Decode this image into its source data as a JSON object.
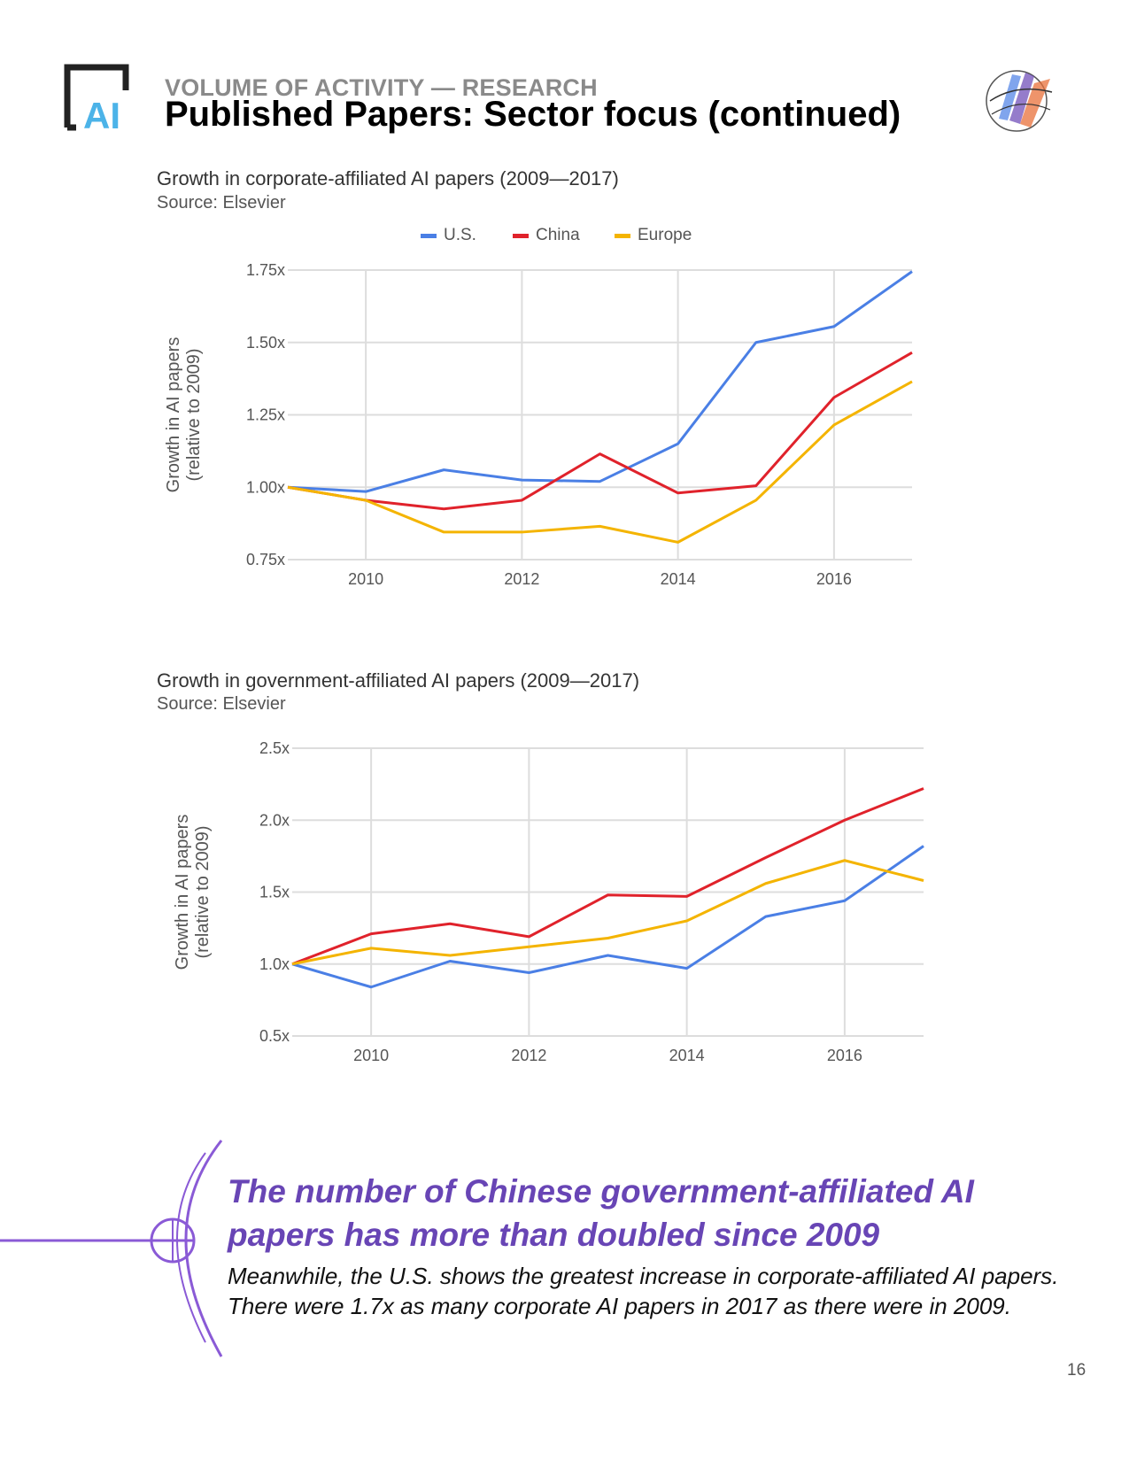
{
  "header": {
    "section": "VOLUME OF ACTIVITY — RESEARCH",
    "title": "Published Papers: Sector focus (continued)",
    "logo_text": "AI"
  },
  "colors": {
    "us": "#4a7fe5",
    "china": "#e0222b",
    "europe": "#f4b400",
    "accent": "#6845b5",
    "logo_dark": "#222222",
    "logo_light": "#4cb3e8"
  },
  "chart_data": [
    {
      "type": "line",
      "title": "Growth in corporate-affiliated AI papers (2009—2017)",
      "source": "Source: Elsevier",
      "ylabel": [
        "Growth in AI papers",
        "(relative to 2009)"
      ],
      "xlabel": "",
      "x": [
        2009,
        2010,
        2011,
        2012,
        2013,
        2014,
        2015,
        2016,
        2017
      ],
      "xticks": [
        2010,
        2012,
        2014,
        2016
      ],
      "xtick_labels": [
        "2010",
        "2012",
        "2014",
        "2016"
      ],
      "xlim": [
        2009,
        2017
      ],
      "yticks": [
        0.75,
        1.0,
        1.25,
        1.5,
        1.75
      ],
      "ytick_labels": [
        "0.75x",
        "1.00x",
        "1.25x",
        "1.50x",
        "1.75x"
      ],
      "ylim": [
        0.75,
        1.75
      ],
      "legend": "top-center",
      "series": [
        {
          "name": "U.S.",
          "color": "#4a7fe5",
          "values": [
            1.0,
            0.985,
            1.06,
            1.025,
            1.02,
            1.15,
            1.5,
            1.555,
            1.745
          ]
        },
        {
          "name": "China",
          "color": "#e0222b",
          "values": [
            1.0,
            0.955,
            0.925,
            0.955,
            1.115,
            0.98,
            1.005,
            1.31,
            1.465
          ]
        },
        {
          "name": "Europe",
          "color": "#f4b400",
          "values": [
            1.0,
            0.955,
            0.845,
            0.845,
            0.865,
            0.81,
            0.955,
            1.215,
            1.365
          ]
        }
      ]
    },
    {
      "type": "line",
      "title": "Growth in government-affiliated AI papers (2009—2017)",
      "source": "Source: Elsevier",
      "ylabel": [
        "Growth in AI papers",
        "(relative to 2009)"
      ],
      "xlabel": "",
      "x": [
        2009,
        2010,
        2011,
        2012,
        2013,
        2014,
        2015,
        2016,
        2017
      ],
      "xticks": [
        2010,
        2012,
        2014,
        2016
      ],
      "xtick_labels": [
        "2010",
        "2012",
        "2014",
        "2016"
      ],
      "xlim": [
        2009,
        2017
      ],
      "yticks": [
        0.5,
        1.0,
        1.5,
        2.0,
        2.5
      ],
      "ytick_labels": [
        "0.5x",
        "1.0x",
        "1.5x",
        "2.0x",
        "2.5x"
      ],
      "ylim": [
        0.5,
        2.5
      ],
      "legend": "top-center",
      "series": [
        {
          "name": "U.S.",
          "color": "#4a7fe5",
          "values": [
            1.0,
            0.84,
            1.02,
            0.94,
            1.06,
            0.97,
            1.33,
            1.44,
            1.82
          ]
        },
        {
          "name": "China",
          "color": "#e0222b",
          "values": [
            1.0,
            1.21,
            1.28,
            1.19,
            1.48,
            1.47,
            1.74,
            2.0,
            2.22
          ]
        },
        {
          "name": "Europe",
          "color": "#f4b400",
          "values": [
            1.0,
            1.11,
            1.06,
            1.12,
            1.18,
            1.3,
            1.56,
            1.72,
            1.58
          ]
        }
      ]
    }
  ],
  "callout": {
    "headline": "The number of Chinese government-affiliated AI papers has more than doubled since 2009",
    "body": "Meanwhile, the U.S. shows the greatest increase in corporate-affiliated AI papers. There were 1.7x as many corporate AI papers in 2017 as there were in 2009."
  },
  "page_number": "16"
}
